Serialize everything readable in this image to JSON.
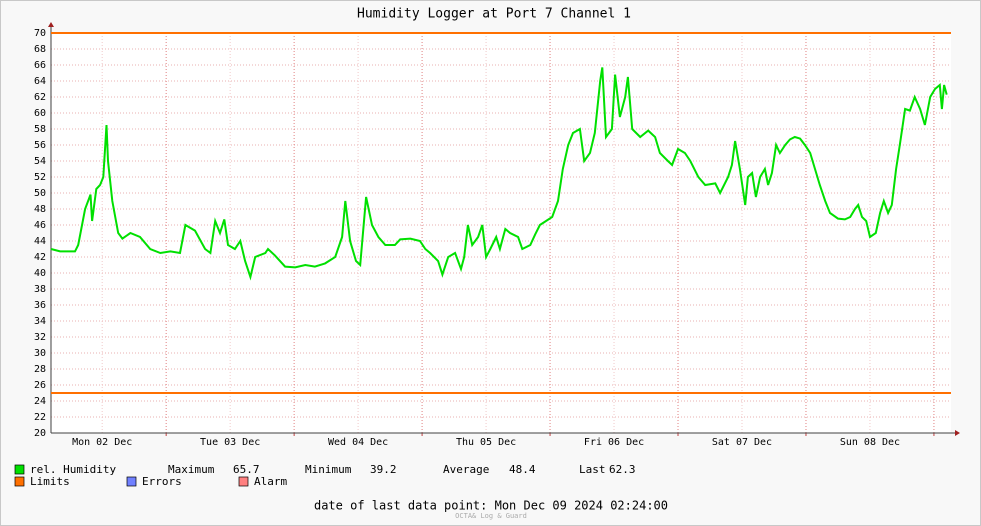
{
  "chart_data": {
    "type": "line",
    "title": "Humidity Logger at Port 7 Channel 1",
    "xlim": [
      2.4,
      171.2
    ],
    "xticks": [
      {
        "value": 12,
        "label": "Mon 02 Dec"
      },
      {
        "value": 36,
        "label": "Tue 03 Dec"
      },
      {
        "value": 60,
        "label": "Wed 04 Dec"
      },
      {
        "value": 84,
        "label": "Thu 05 Dec"
      },
      {
        "value": 108,
        "label": "Fri 06 Dec"
      },
      {
        "value": 132,
        "label": "Sat 07 Dec"
      },
      {
        "value": 156,
        "label": "Sun 08 Dec"
      }
    ],
    "x_day_grid": [
      24,
      48,
      72,
      96,
      120,
      144,
      168
    ],
    "ylim": [
      20,
      70
    ],
    "yticks": [
      20,
      22,
      24,
      26,
      28,
      30,
      32,
      34,
      36,
      38,
      40,
      42,
      44,
      46,
      48,
      50,
      52,
      54,
      56,
      58,
      60,
      62,
      64,
      66,
      68,
      70
    ],
    "grid": true,
    "series": [
      {
        "name": "rel. Humidity",
        "color": "#00e000",
        "x": [
          2.4,
          4.1,
          6.9,
          7.5,
          8.8,
          9.8,
          10.1,
          10.9,
          11.6,
          12.2,
          12.8,
          13.1,
          13.9,
          15.0,
          15.8,
          17.3,
          19.1,
          21.0,
          22.9,
          24.8,
          26.6,
          27.6,
          29.4,
          31.3,
          32.3,
          33.2,
          34.1,
          34.9,
          35.6,
          36.9,
          37.9,
          38.8,
          39.8,
          40.7,
          42.6,
          43.1,
          44.4,
          46.3,
          48.2,
          50.1,
          51.9,
          53.8,
          55.7,
          57.0,
          57.6,
          58.5,
          59.6,
          60.4,
          61.5,
          62.6,
          63.8,
          65.1,
          66.9,
          67.9,
          69.8,
          71.6,
          72.6,
          73.5,
          75.0,
          75.8,
          76.9,
          78.2,
          79.3,
          79.9,
          80.6,
          81.4,
          82.5,
          83.3,
          84.0,
          84.8,
          85.9,
          86.6,
          87.6,
          88.5,
          90.0,
          90.8,
          92.3,
          93.2,
          94.1,
          96.4,
          97.5,
          98.4,
          99.4,
          100.3,
          101.6,
          102.4,
          103.5,
          104.4,
          105.4,
          105.8,
          106.5,
          107.6,
          108.2,
          109.1,
          110.1,
          110.6,
          111.4,
          112.9,
          114.4,
          115.7,
          116.6,
          118.1,
          118.9,
          120.0,
          121.3,
          122.3,
          123.8,
          125.1,
          127.0,
          127.9,
          129.4,
          130.1,
          130.7,
          131.6,
          132.6,
          133.1,
          133.9,
          134.6,
          135.4,
          136.3,
          136.9,
          137.6,
          138.4,
          139.1,
          140.1,
          141.0,
          141.9,
          142.9,
          143.8,
          144.8,
          145.7,
          146.6,
          147.6,
          148.5,
          150.0,
          151.3,
          152.3,
          153.2,
          153.8,
          154.5,
          155.3,
          156.0,
          157.1,
          157.9,
          158.6,
          159.4,
          160.1,
          160.9,
          161.6,
          162.6,
          163.5,
          164.4,
          165.4,
          166.3,
          167.3,
          168.2,
          169.1,
          169.5,
          169.9,
          170.4
        ],
        "values": [
          43,
          42.7,
          42.7,
          43.5,
          48,
          49.8,
          46.5,
          50.5,
          51,
          52,
          58.5,
          54,
          49,
          45,
          44.3,
          45,
          44.5,
          43,
          42.5,
          42.7,
          42.5,
          46,
          45.3,
          43,
          42.5,
          46.5,
          45,
          46.7,
          43.5,
          43,
          44,
          41.5,
          39.5,
          42,
          42.5,
          43,
          42.2,
          40.8,
          40.7,
          41,
          40.8,
          41.2,
          42,
          44.5,
          49,
          44,
          41.5,
          41,
          49.5,
          46,
          44.5,
          43.5,
          43.5,
          44.2,
          44.3,
          44,
          43,
          42.5,
          41.5,
          39.8,
          42,
          42.5,
          40.5,
          42,
          46,
          43.5,
          44.5,
          46,
          42,
          43,
          44.5,
          43,
          45.5,
          45,
          44.5,
          43,
          43.5,
          44.8,
          46,
          47,
          49,
          53,
          56,
          57.5,
          58,
          54,
          55,
          57.5,
          64,
          65.7,
          57,
          58,
          64.8,
          59.5,
          62,
          64.5,
          58,
          57,
          57.8,
          57,
          55,
          54,
          53.5,
          55.5,
          55,
          54,
          52,
          51,
          51.2,
          50,
          52,
          53.5,
          56.5,
          53,
          48.5,
          52,
          52.5,
          49.5,
          52,
          53,
          51,
          52.5,
          56,
          55,
          56,
          56.7,
          57,
          56.8,
          56,
          55,
          53,
          51,
          49,
          47.5,
          46.8,
          46.7,
          47,
          48,
          48.5,
          47,
          46.5,
          44.5,
          45,
          47.5,
          49,
          47.5,
          48.5,
          53,
          56,
          60.5,
          60.3,
          62,
          60.5,
          58.5,
          62,
          63,
          63.5,
          60.5,
          63.5,
          62.3
        ]
      }
    ],
    "limits": {
      "name": "Limits",
      "color": "#ff7000",
      "values": [
        70,
        25
      ]
    },
    "extra_legend": [
      {
        "name": "Errors",
        "color": "#7080ff"
      },
      {
        "name": "Alarm",
        "color": "#ff8080"
      }
    ],
    "stats": [
      {
        "label": "Maximum",
        "value": 65.7
      },
      {
        "label": "Minimum",
        "value": 39.2
      },
      {
        "label": "Average",
        "value": 48.4
      },
      {
        "label": "Last",
        "value": 62.3
      }
    ],
    "footer": "date of last data point:  Mon Dec 09 2024 02:24:00",
    "watermark": "OCTA& Log & Guard"
  }
}
